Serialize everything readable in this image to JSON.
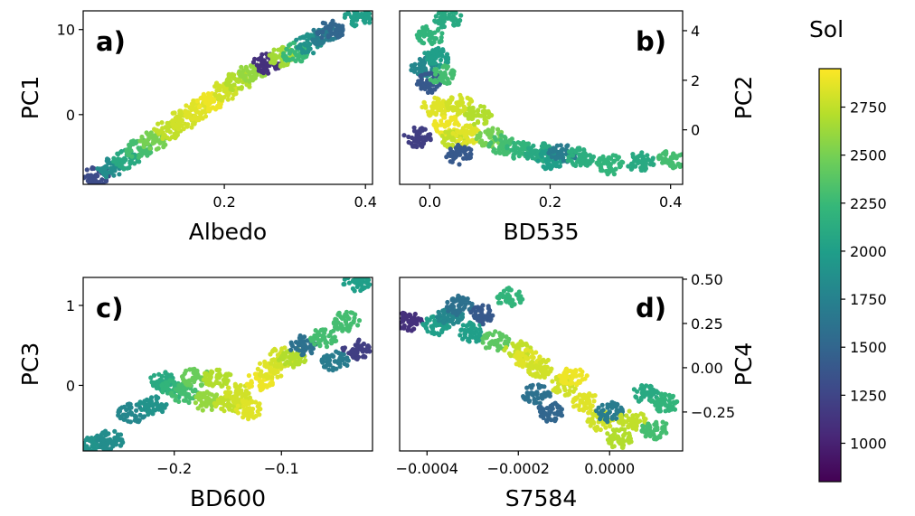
{
  "colormap": {
    "name": "viridis",
    "stops": [
      "#440154",
      "#482878",
      "#3e4989",
      "#31688e",
      "#26828e",
      "#1f9e89",
      "#35b779",
      "#6ece58",
      "#b5de2b",
      "#fde725"
    ]
  },
  "colorbar": {
    "label": "Sol",
    "range": [
      800,
      2950
    ],
    "ticks": [
      1000,
      1250,
      1500,
      1750,
      2000,
      2250,
      2500,
      2750
    ],
    "tick_labels": [
      "1000",
      "1250",
      "1500",
      "1750",
      "2000",
      "2250",
      "2500",
      "2750"
    ]
  },
  "chart_data": [
    {
      "type": "scatter",
      "panel": "a)",
      "xlabel": "Albedo",
      "ylabel": "PC1",
      "xlim": [
        0.0,
        0.41
      ],
      "ylim": [
        -8.2,
        12.2
      ],
      "xticks": [
        0.2,
        0.4
      ],
      "xtick_labels": [
        "0.2",
        "0.4"
      ],
      "yticks": [
        0,
        10
      ],
      "ytick_labels": [
        "0",
        "10"
      ],
      "yaxis_side": "left",
      "tag_position": "top-left",
      "points": [
        [
          0.02,
          -7.2,
          1300
        ],
        [
          0.04,
          -6.3,
          1850
        ],
        [
          0.06,
          -5.3,
          2100
        ],
        [
          0.08,
          -4.1,
          2300
        ],
        [
          0.1,
          -3.0,
          2500
        ],
        [
          0.12,
          -1.8,
          2750
        ],
        [
          0.14,
          -0.7,
          2800
        ],
        [
          0.16,
          0.5,
          2850
        ],
        [
          0.18,
          1.6,
          2900
        ],
        [
          0.2,
          2.8,
          2800
        ],
        [
          0.22,
          3.9,
          2700
        ],
        [
          0.24,
          5.0,
          2600
        ],
        [
          0.26,
          6.0,
          1100
        ],
        [
          0.28,
          6.8,
          2650
        ],
        [
          0.3,
          7.3,
          2250
        ],
        [
          0.32,
          8.3,
          1900
        ],
        [
          0.34,
          9.3,
          1700
        ],
        [
          0.35,
          9.9,
          1500
        ],
        [
          0.39,
          11.5,
          2000
        ]
      ]
    },
    {
      "type": "scatter",
      "panel": "b)",
      "xlabel": "BD535",
      "ylabel": "PC2",
      "xlim": [
        -0.05,
        0.42
      ],
      "ylim": [
        -2.2,
        4.8
      ],
      "xticks": [
        0.0,
        0.2,
        0.4
      ],
      "xtick_labels": [
        "0.0",
        "0.2",
        "0.4"
      ],
      "yticks": [
        0,
        2,
        4
      ],
      "ytick_labels": [
        "0",
        "2",
        "4"
      ],
      "yaxis_side": "right",
      "tag_position": "top-right",
      "points": [
        [
          -0.01,
          2.5,
          1800
        ],
        [
          0.0,
          1.9,
          1400
        ],
        [
          0.0,
          3.8,
          2200
        ],
        [
          0.01,
          2.9,
          2000
        ],
        [
          0.02,
          2.2,
          2300
        ],
        [
          0.03,
          4.5,
          2100
        ],
        [
          0.01,
          0.9,
          2850
        ],
        [
          0.03,
          0.2,
          2900
        ],
        [
          0.05,
          1.0,
          2800
        ],
        [
          0.04,
          -0.4,
          2750
        ],
        [
          0.06,
          -0.2,
          2850
        ],
        [
          0.08,
          0.6,
          2700
        ],
        [
          0.05,
          -1.0,
          1400
        ],
        [
          0.1,
          -0.3,
          2500
        ],
        [
          0.12,
          -0.6,
          2300
        ],
        [
          0.15,
          -0.8,
          2200
        ],
        [
          0.18,
          -0.9,
          2100
        ],
        [
          0.2,
          -1.2,
          2000
        ],
        [
          0.22,
          -1.0,
          1700
        ],
        [
          0.25,
          -1.1,
          2150
        ],
        [
          0.3,
          -1.4,
          2200
        ],
        [
          0.35,
          -1.3,
          2100
        ],
        [
          0.4,
          -1.2,
          2300
        ],
        [
          -0.02,
          -0.3,
          1200
        ]
      ]
    },
    {
      "type": "scatter",
      "panel": "c)",
      "xlabel": "BD600",
      "ylabel": "PC3",
      "xlim": [
        -0.285,
        -0.015
      ],
      "ylim": [
        -0.82,
        1.35
      ],
      "xticks": [
        -0.2,
        -0.1
      ],
      "xtick_labels": [
        "−0.2",
        "−0.1"
      ],
      "yticks": [
        0,
        1
      ],
      "ytick_labels": [
        "0",
        "1"
      ],
      "yaxis_side": "left",
      "tag_position": "top-left",
      "points": [
        [
          -0.275,
          -0.75,
          1900
        ],
        [
          -0.26,
          -0.68,
          1850
        ],
        [
          -0.24,
          -0.35,
          1800
        ],
        [
          -0.22,
          -0.25,
          1900
        ],
        [
          -0.21,
          0.05,
          2100
        ],
        [
          -0.2,
          -0.05,
          2200
        ],
        [
          -0.19,
          -0.1,
          2300
        ],
        [
          -0.18,
          0.1,
          2450
        ],
        [
          -0.17,
          -0.2,
          2600
        ],
        [
          -0.16,
          0.1,
          2700
        ],
        [
          -0.15,
          -0.25,
          2750
        ],
        [
          -0.14,
          -0.1,
          2800
        ],
        [
          -0.13,
          -0.3,
          2850
        ],
        [
          -0.12,
          0.05,
          2900
        ],
        [
          -0.11,
          0.2,
          2850
        ],
        [
          -0.1,
          0.35,
          2800
        ],
        [
          -0.09,
          0.35,
          2700
        ],
        [
          -0.08,
          0.5,
          1600
        ],
        [
          -0.06,
          0.6,
          2300
        ],
        [
          -0.05,
          0.3,
          1700
        ],
        [
          -0.04,
          0.8,
          2300
        ],
        [
          -0.03,
          1.3,
          2000
        ],
        [
          -0.03,
          0.45,
          1200
        ]
      ]
    },
    {
      "type": "scatter",
      "panel": "d)",
      "xlabel": "S7584",
      "ylabel": "PC4",
      "xlim": [
        -0.00046,
        0.00016
      ],
      "ylim": [
        -0.47,
        0.51
      ],
      "xticks": [
        -0.0004,
        -0.0002,
        0.0
      ],
      "xtick_labels": [
        "−0.0004",
        "−0.0002",
        "0.0000"
      ],
      "yticks": [
        -0.25,
        0.0,
        0.25,
        0.5
      ],
      "ytick_labels": [
        "−0.25",
        "0.00",
        "0.25",
        "0.50"
      ],
      "yaxis_side": "right",
      "tag_position": "top-right",
      "points": [
        [
          -0.00044,
          0.26,
          1100
        ],
        [
          -0.00038,
          0.24,
          2000
        ],
        [
          -0.00035,
          0.3,
          1800
        ],
        [
          -0.00033,
          0.35,
          1600
        ],
        [
          -0.0003,
          0.2,
          2000
        ],
        [
          -0.00028,
          0.3,
          1400
        ],
        [
          -0.00025,
          0.15,
          2400
        ],
        [
          -0.00022,
          0.4,
          2200
        ],
        [
          -0.0002,
          0.1,
          2750
        ],
        [
          -0.00018,
          0.05,
          2850
        ],
        [
          -0.00016,
          -0.15,
          1600
        ],
        [
          -0.00015,
          0.0,
          2800
        ],
        [
          -0.00013,
          -0.25,
          1500
        ],
        [
          -0.0001,
          -0.1,
          2800
        ],
        [
          -8e-05,
          -0.05,
          2900
        ],
        [
          -5e-05,
          -0.2,
          2850
        ],
        [
          -2e-05,
          -0.3,
          2800
        ],
        [
          0.0,
          -0.25,
          1700
        ],
        [
          2e-05,
          -0.4,
          2700
        ],
        [
          5e-05,
          -0.3,
          2750
        ],
        [
          8e-05,
          -0.15,
          2100
        ],
        [
          0.0001,
          -0.35,
          2300
        ],
        [
          0.00012,
          -0.2,
          2200
        ]
      ]
    }
  ]
}
